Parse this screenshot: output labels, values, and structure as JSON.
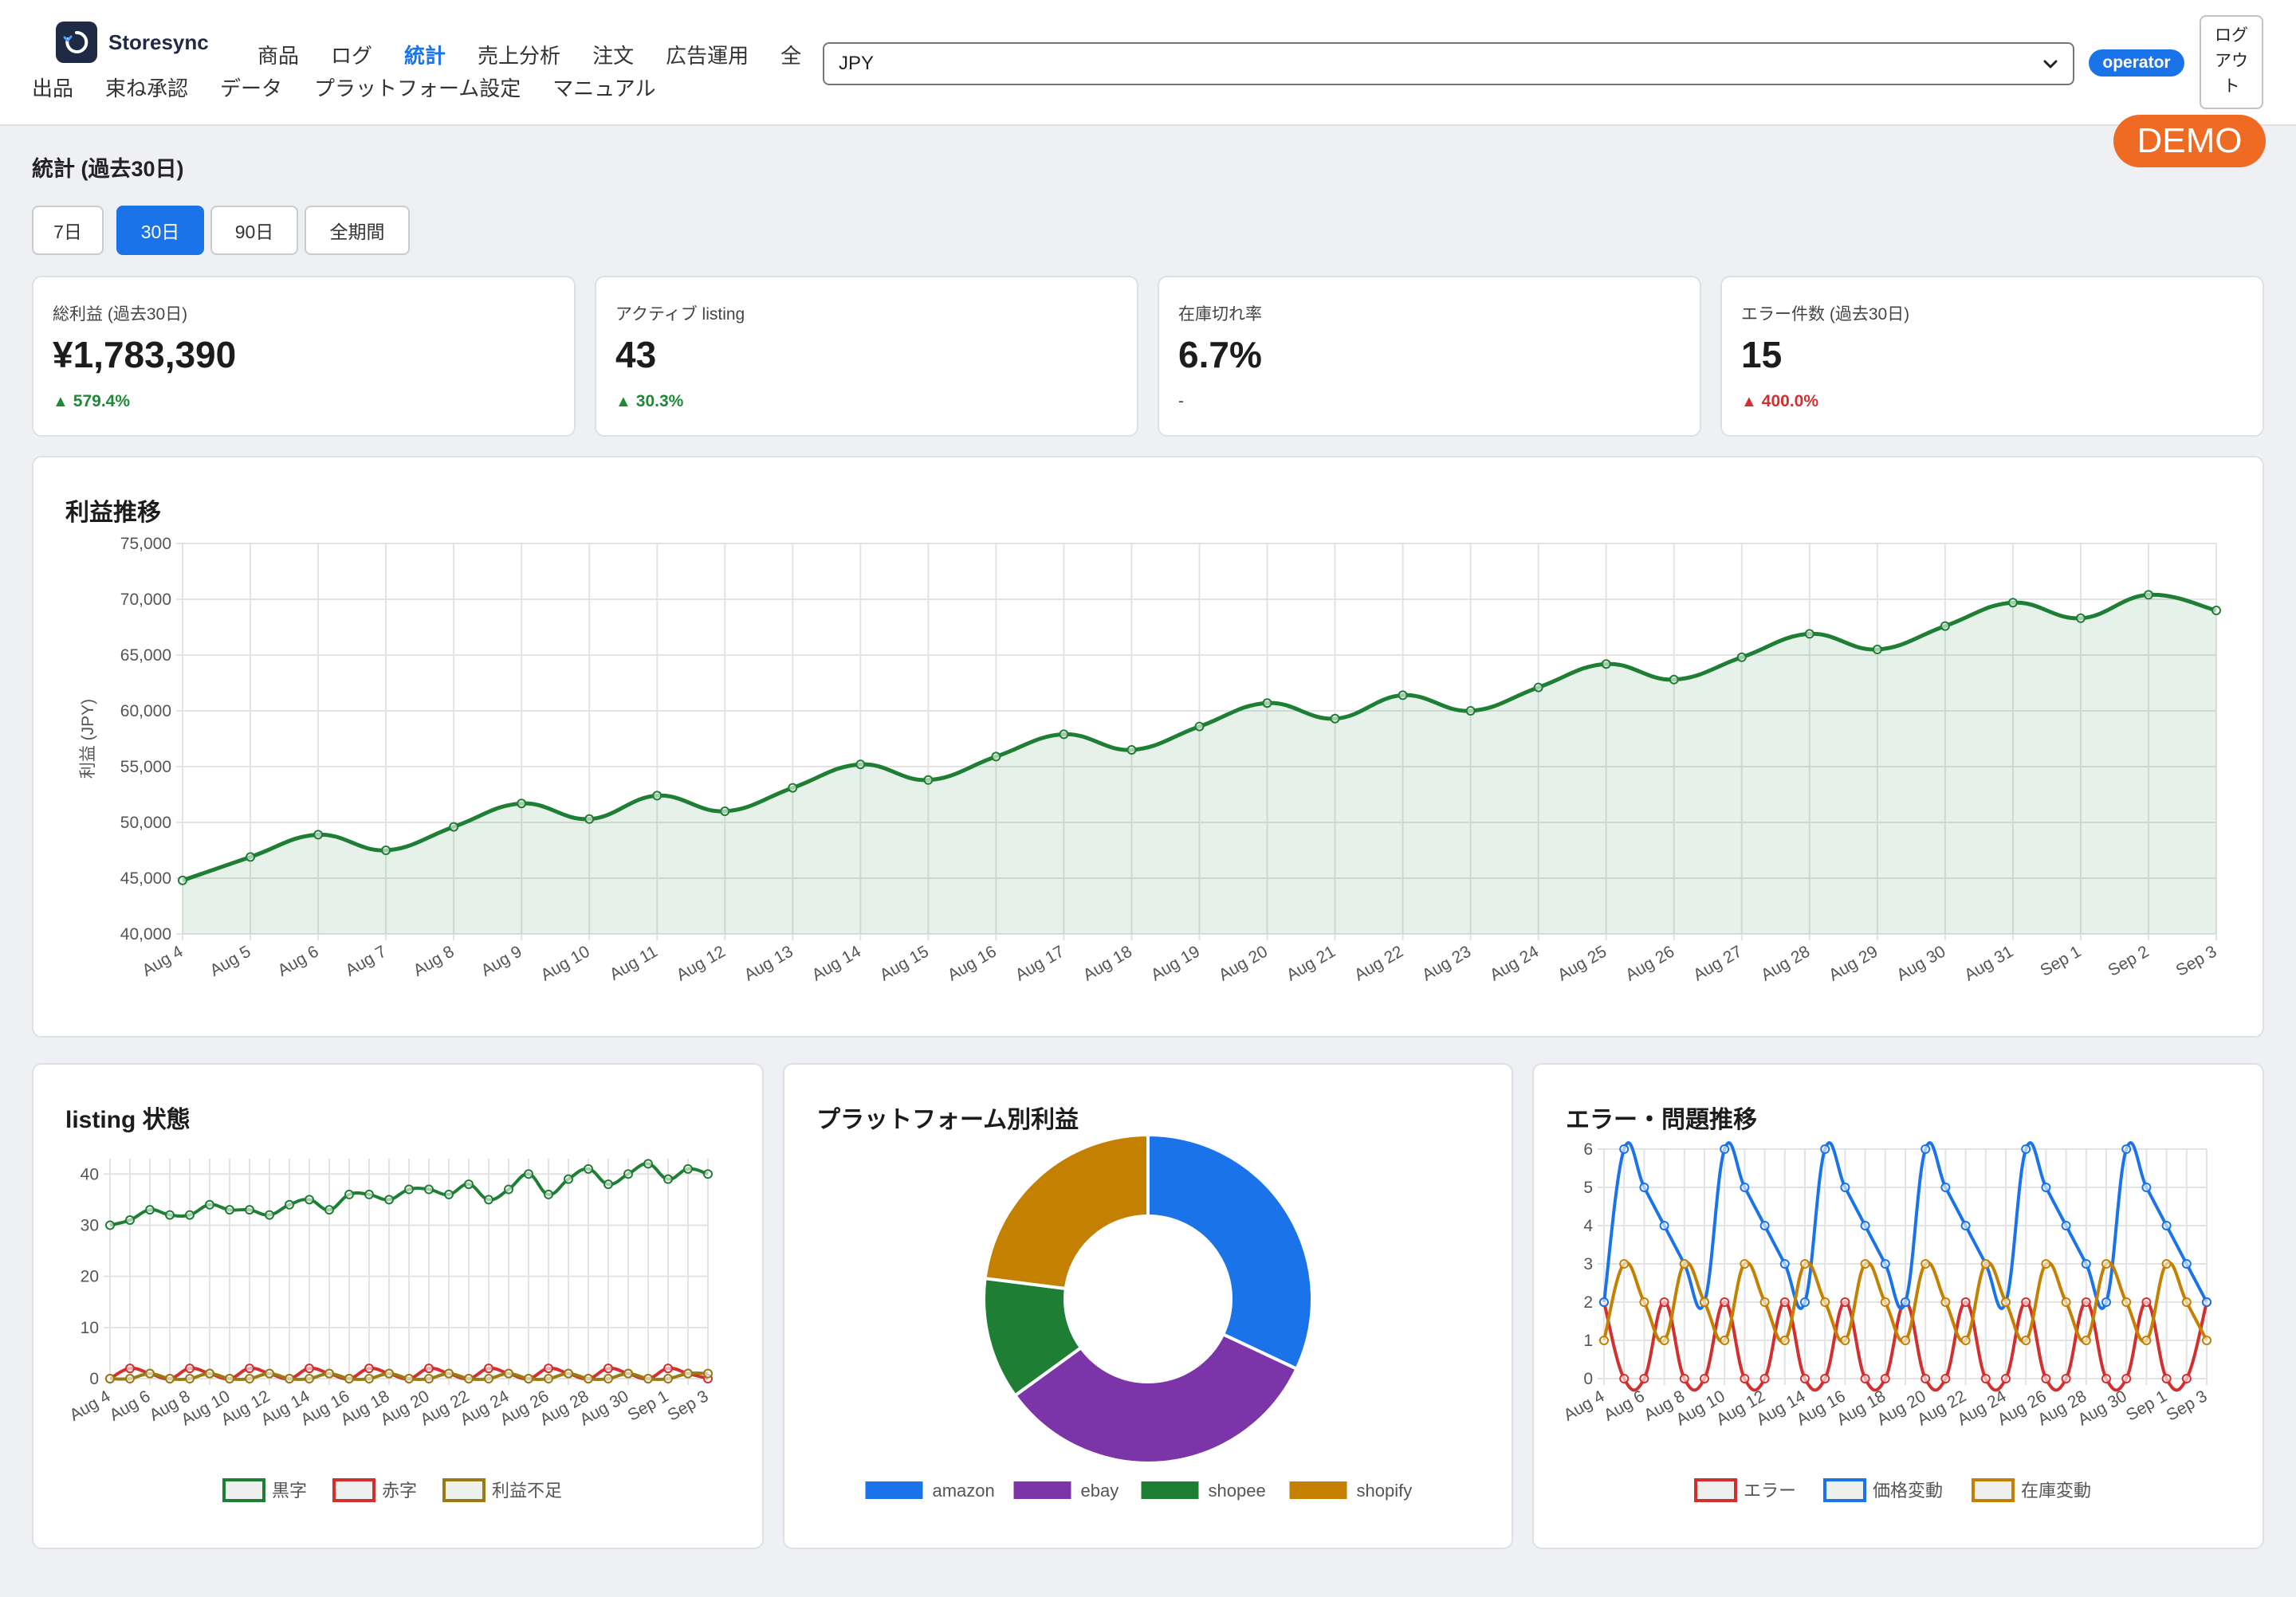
{
  "header": {
    "brand_name": "Storesync",
    "nav_row1": [
      "商品",
      "ログ",
      "統計",
      "売上分析",
      "注文",
      "広告運用",
      "全"
    ],
    "nav_row2": [
      "出品",
      "束ね承認",
      "データ",
      "プラットフォーム設定",
      "マニュアル"
    ],
    "active_nav": "統計",
    "currency_value": "JPY",
    "role_badge": "operator",
    "logout_lines": [
      "ログ",
      "アウ",
      "ト"
    ],
    "demo_badge": "DEMO"
  },
  "page": {
    "title": "統計 (過去30日)",
    "periods": [
      "7日",
      "30日",
      "90日",
      "全期間"
    ],
    "active_period": "30日"
  },
  "kpis": [
    {
      "label": "総利益 (過去30日)",
      "value": "¥1,783,390",
      "change": "579.4%",
      "trend": "up",
      "status_color": "#1e8a35"
    },
    {
      "label": "アクティブ listing",
      "value": "43",
      "change": "30.3%",
      "trend": "up",
      "status_color": "#1e8a35"
    },
    {
      "label": "在庫切れ率",
      "value": "6.7%",
      "change": "-",
      "trend": "none",
      "status_color": "#444444"
    },
    {
      "label": "エラー件数 (過去30日)",
      "value": "15",
      "change": "400.0%",
      "trend": "up",
      "status_color": "#d32f2f"
    }
  ],
  "chart_data": [
    {
      "type": "area",
      "title": "利益推移",
      "xlabel": "",
      "ylabel": "利益 (JPY)",
      "ylim": [
        40000,
        75000
      ],
      "yticks": [
        "40,000",
        "45,000",
        "50,000",
        "55,000",
        "60,000",
        "65,000",
        "70,000",
        "75,000"
      ],
      "grid": true,
      "categories": [
        "Aug 4",
        "Aug 5",
        "Aug 6",
        "Aug 7",
        "Aug 8",
        "Aug 9",
        "Aug 10",
        "Aug 11",
        "Aug 12",
        "Aug 13",
        "Aug 14",
        "Aug 15",
        "Aug 16",
        "Aug 17",
        "Aug 18",
        "Aug 19",
        "Aug 20",
        "Aug 21",
        "Aug 22",
        "Aug 23",
        "Aug 24",
        "Aug 25",
        "Aug 26",
        "Aug 27",
        "Aug 28",
        "Aug 29",
        "Aug 30",
        "Aug 31",
        "Sep 1",
        "Sep 2",
        "Sep 3"
      ],
      "series": [
        {
          "values": [
            44800,
            46900,
            48900,
            47500,
            49600,
            51700,
            50300,
            52400,
            51000,
            53100,
            55200,
            53800,
            55900,
            57900,
            56500,
            58600,
            60700,
            59300,
            61400,
            60000,
            62100,
            64200,
            62800,
            64800,
            66900,
            65500,
            67600,
            69700,
            68300,
            70400,
            69000
          ],
          "color": "#1e7e34"
        }
      ]
    },
    {
      "type": "line",
      "title": "listing 状態",
      "xlabel": "",
      "ylabel": "",
      "ylim": [
        0,
        43
      ],
      "yticks": [
        "0",
        "10",
        "20",
        "30",
        "40"
      ],
      "grid": true,
      "legend": "bottom",
      "tick_labels": [
        "Aug 4",
        "Aug 6",
        "Aug 8",
        "Aug 10",
        "Aug 12",
        "Aug 14",
        "Aug 16",
        "Aug 18",
        "Aug 20",
        "Aug 22",
        "Aug 24",
        "Aug 26",
        "Aug 28",
        "Aug 30",
        "Sep 1",
        "Sep 3"
      ],
      "series": [
        {
          "name": "黒字",
          "color": "#1e7e34",
          "values": [
            30,
            31,
            33,
            32,
            32,
            34,
            33,
            33,
            32,
            34,
            35,
            33,
            36,
            36,
            35,
            37,
            37,
            36,
            38,
            35,
            37,
            40,
            36,
            39,
            41,
            38,
            40,
            42,
            39,
            41,
            40
          ]
        },
        {
          "name": "赤字",
          "color": "#d32f2f",
          "values": [
            0,
            2,
            1,
            0,
            2,
            1,
            0,
            2,
            1,
            0,
            2,
            1,
            0,
            2,
            1,
            0,
            2,
            1,
            0,
            2,
            1,
            0,
            2,
            1,
            0,
            2,
            1,
            0,
            2,
            1,
            0
          ]
        },
        {
          "name": "利益不足",
          "color": "#9a7a12",
          "values": [
            0,
            0,
            1,
            0,
            0,
            1,
            0,
            0,
            1,
            0,
            0,
            1,
            0,
            0,
            1,
            0,
            0,
            1,
            0,
            0,
            1,
            0,
            0,
            1,
            0,
            0,
            1,
            0,
            0,
            1,
            1
          ]
        }
      ]
    },
    {
      "type": "pie",
      "title": "プラットフォーム別利益",
      "legend": "bottom",
      "labels": [
        "amazon",
        "ebay",
        "shopee",
        "shopify"
      ],
      "values": [
        32,
        33,
        12,
        23
      ],
      "colors": [
        "#1a73e8",
        "#7b35a8",
        "#1e7e34",
        "#c48000"
      ]
    },
    {
      "type": "line",
      "title": "エラー・問題推移",
      "xlabel": "",
      "ylabel": "",
      "ylim": [
        0,
        6
      ],
      "yticks": [
        "0",
        "1",
        "2",
        "3",
        "4",
        "5",
        "6"
      ],
      "grid": true,
      "legend": "bottom",
      "tick_labels": [
        "Aug 4",
        "Aug 6",
        "Aug 8",
        "Aug 10",
        "Aug 12",
        "Aug 14",
        "Aug 16",
        "Aug 18",
        "Aug 20",
        "Aug 22",
        "Aug 24",
        "Aug 26",
        "Aug 28",
        "Aug 30",
        "Sep 1",
        "Sep 3"
      ],
      "series": [
        {
          "name": "エラー",
          "color": "#d32f2f",
          "values": [
            2,
            0,
            0,
            2,
            0,
            0,
            2,
            0,
            0,
            2,
            0,
            0,
            2,
            0,
            0,
            2,
            0,
            0,
            2,
            0,
            0,
            2,
            0,
            0,
            2,
            0,
            0,
            2,
            0,
            0,
            2
          ]
        },
        {
          "name": "価格変動",
          "color": "#1a73e8",
          "values": [
            2,
            6,
            5,
            4,
            3,
            2,
            6,
            5,
            4,
            3,
            2,
            6,
            5,
            4,
            3,
            2,
            6,
            5,
            4,
            3,
            2,
            6,
            5,
            4,
            3,
            2,
            6,
            5,
            4,
            3,
            2
          ]
        },
        {
          "name": "在庫変動",
          "color": "#c48000",
          "values": [
            1,
            3,
            2,
            1,
            3,
            2,
            1,
            3,
            2,
            1,
            3,
            2,
            1,
            3,
            2,
            1,
            3,
            2,
            1,
            3,
            2,
            1,
            3,
            2,
            1,
            3,
            2,
            1,
            3,
            2,
            1
          ]
        }
      ]
    }
  ]
}
